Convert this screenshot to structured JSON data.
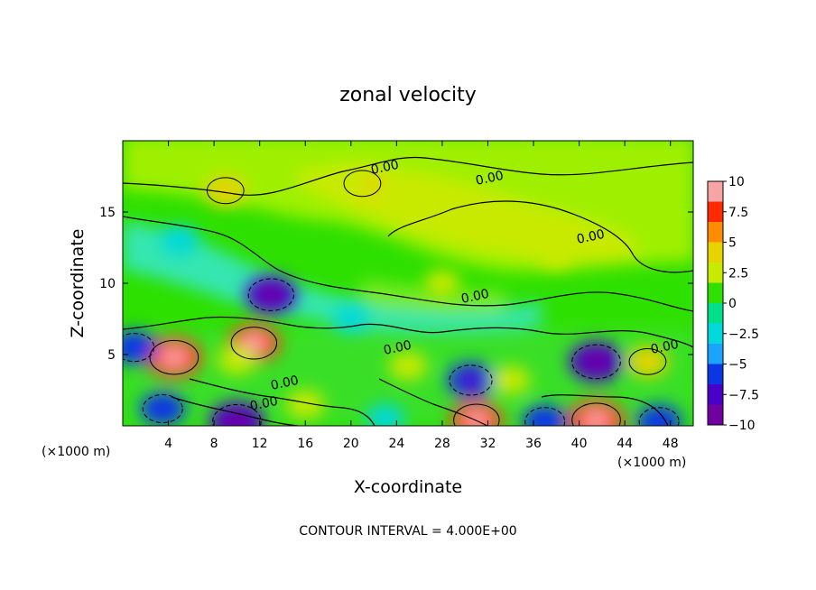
{
  "chart_data": {
    "type": "heatmap",
    "title": "zonal velocity",
    "xlabel": "X-coordinate",
    "ylabel": "Z-coordinate",
    "x_unit": "(×1000 m)",
    "z_unit": "(×1000 m)",
    "footer": "CONTOUR INTERVAL = 4.000E+00",
    "xlim": [
      0,
      50
    ],
    "ylim": [
      0,
      20
    ],
    "x_ticks": [
      4,
      8,
      12,
      16,
      20,
      24,
      28,
      32,
      36,
      40,
      44,
      48
    ],
    "y_ticks": [
      5,
      10,
      15
    ],
    "colorbar": {
      "ticks": [
        10,
        7.5,
        5,
        2.5,
        0,
        -2.5,
        -5,
        -7.5,
        -10
      ],
      "tick_labels": [
        "10",
        "7.5",
        "5",
        "2.5",
        "0",
        "−2.5",
        "−5",
        "−7.5",
        "−10"
      ],
      "colors": [
        "#f7a4a4",
        "#ff2a00",
        "#ff8c00",
        "#e6d300",
        "#c8ea00",
        "#2ee000",
        "#00e08a",
        "#00d8dc",
        "#1aa3ff",
        "#0a36e6",
        "#4a00c8",
        "#7000a0"
      ]
    },
    "contour_labels": [
      "0.00",
      "0.00",
      "0.00",
      "0.00",
      "0.00",
      "0.00",
      "0.00",
      "0.00"
    ],
    "features": [
      {
        "x": 4.5,
        "z": 4.8,
        "value": 8
      },
      {
        "x": 11.5,
        "z": 5.8,
        "value": 7
      },
      {
        "x": 10,
        "z": 4.6,
        "value": 3
      },
      {
        "x": 13,
        "z": 9.2,
        "value": -7
      },
      {
        "x": 1,
        "z": 5.5,
        "value": -5
      },
      {
        "x": 3.5,
        "z": 1.2,
        "value": -5
      },
      {
        "x": 10,
        "z": 0.3,
        "value": -8
      },
      {
        "x": 41.5,
        "z": 4.5,
        "value": -8
      },
      {
        "x": 41.5,
        "z": 0.4,
        "value": 8
      },
      {
        "x": 30.5,
        "z": 3.2,
        "value": -6
      },
      {
        "x": 31,
        "z": 0.4,
        "value": 7
      },
      {
        "x": 21,
        "z": 17,
        "value": 4
      },
      {
        "x": 9,
        "z": 16.5,
        "value": 4
      },
      {
        "x": 46,
        "z": 4.5,
        "value": 4
      },
      {
        "x": 25,
        "z": 4.2,
        "value": 3
      },
      {
        "x": 34,
        "z": 3.2,
        "value": 3
      },
      {
        "x": 37,
        "z": 0.3,
        "value": -5
      },
      {
        "x": 47,
        "z": 0.3,
        "value": -5
      },
      {
        "x": 20,
        "z": 7.5,
        "value": -2
      },
      {
        "x": 5,
        "z": 13,
        "value": -3
      },
      {
        "x": 28,
        "z": 10,
        "value": 2
      },
      {
        "x": 38,
        "z": 12,
        "value": 2
      },
      {
        "x": 20,
        "z": 17.2,
        "value": 3
      },
      {
        "x": 16,
        "z": 1.5,
        "value": 3
      },
      {
        "x": 23,
        "z": 0.5,
        "value": -3
      }
    ]
  }
}
